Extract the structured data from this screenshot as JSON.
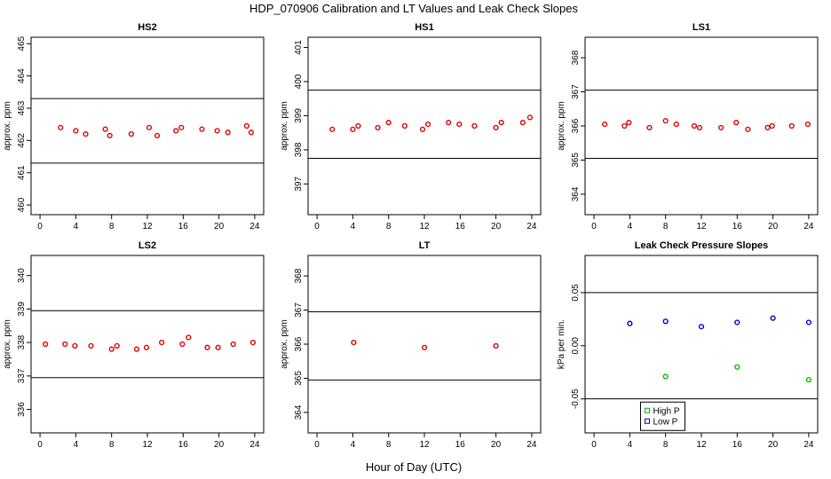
{
  "title": "HDP_070906  Calibration and LT Values and Leak Check Slopes",
  "xlabel": "Hour of Day (UTC)",
  "chart_data": [
    {
      "type": "scatter",
      "title": "HS2",
      "ylabel": "approx. ppm",
      "xlim": [
        -1,
        25
      ],
      "ylim": [
        459.7,
        465.2
      ],
      "xticks": [
        0,
        4,
        8,
        12,
        16,
        20,
        24
      ],
      "yticks": [
        460,
        461,
        462,
        463,
        464,
        465
      ],
      "hlines": [
        463.3,
        461.3
      ],
      "series": [
        {
          "color": "#dd0000",
          "x": [
            2.3,
            4.0,
            5.1,
            7.3,
            7.8,
            10.2,
            12.2,
            13.1,
            15.2,
            15.8,
            18.1,
            19.8,
            21.0,
            23.1,
            23.6
          ],
          "y": [
            462.4,
            462.3,
            462.2,
            462.35,
            462.15,
            462.2,
            462.4,
            462.15,
            462.3,
            462.4,
            462.35,
            462.3,
            462.25,
            462.45,
            462.25
          ]
        }
      ]
    },
    {
      "type": "scatter",
      "title": "HS1",
      "ylabel": "approx. ppm",
      "xlim": [
        -1,
        25
      ],
      "ylim": [
        396.1,
        401.3
      ],
      "xticks": [
        0,
        4,
        8,
        12,
        16,
        20,
        24
      ],
      "yticks": [
        397,
        398,
        399,
        400,
        401
      ],
      "hlines": [
        399.75,
        397.75
      ],
      "series": [
        {
          "color": "#dd0000",
          "x": [
            1.7,
            4.0,
            4.6,
            6.8,
            8.0,
            9.8,
            11.8,
            12.4,
            14.7,
            15.9,
            17.6,
            20.0,
            20.6,
            23.0,
            23.8
          ],
          "y": [
            398.6,
            398.6,
            398.7,
            398.65,
            398.8,
            398.7,
            398.6,
            398.75,
            398.8,
            398.75,
            398.7,
            398.65,
            398.8,
            398.8,
            398.95
          ]
        }
      ]
    },
    {
      "type": "scatter",
      "title": "LS1",
      "ylabel": "approx. ppm",
      "xlim": [
        -1,
        25
      ],
      "ylim": [
        363.4,
        368.6
      ],
      "xticks": [
        0,
        4,
        8,
        12,
        16,
        20,
        24
      ],
      "yticks": [
        364,
        365,
        366,
        367,
        368
      ],
      "hlines": [
        367.05,
        365.05
      ],
      "series": [
        {
          "color": "#dd0000",
          "x": [
            1.2,
            3.4,
            3.9,
            6.2,
            8.0,
            9.2,
            11.2,
            11.8,
            14.2,
            15.9,
            17.2,
            19.4,
            19.9,
            22.1,
            23.9
          ],
          "y": [
            366.05,
            366.0,
            366.1,
            365.95,
            366.15,
            366.05,
            366.0,
            365.95,
            365.95,
            366.1,
            365.9,
            365.95,
            366.0,
            366.0,
            366.05
          ]
        }
      ]
    },
    {
      "type": "scatter",
      "title": "LS2",
      "ylabel": "approx. ppm",
      "xlim": [
        -1,
        25
      ],
      "ylim": [
        335.3,
        340.6
      ],
      "xticks": [
        0,
        4,
        8,
        12,
        16,
        20,
        24
      ],
      "yticks": [
        336,
        337,
        338,
        339,
        340
      ],
      "hlines": [
        338.95,
        336.95
      ],
      "series": [
        {
          "color": "#dd0000",
          "x": [
            0.6,
            2.8,
            3.9,
            5.7,
            8.0,
            8.6,
            10.8,
            11.9,
            13.6,
            15.9,
            16.6,
            18.7,
            19.9,
            21.6,
            23.8
          ],
          "y": [
            337.95,
            337.95,
            337.9,
            337.9,
            337.8,
            337.9,
            337.8,
            337.85,
            338.0,
            337.95,
            338.15,
            337.85,
            337.85,
            337.95,
            338.0
          ]
        }
      ]
    },
    {
      "type": "scatter",
      "title": "LT",
      "ylabel": "approx. ppm",
      "xlim": [
        -1,
        25
      ],
      "ylim": [
        363.4,
        368.6
      ],
      "xticks": [
        0,
        4,
        8,
        12,
        16,
        20,
        24
      ],
      "yticks": [
        364,
        365,
        366,
        367,
        368
      ],
      "hlines": [
        366.95,
        364.95
      ],
      "series": [
        {
          "color": "#dd0000",
          "x": [
            4.1,
            12.0,
            20.0
          ],
          "y": [
            366.05,
            365.9,
            365.95
          ]
        }
      ]
    },
    {
      "type": "scatter",
      "title": "Leak Check Pressure Slopes",
      "ylabel": "kPa per min.",
      "xlim": [
        -1,
        25
      ],
      "ylim": [
        -0.082,
        0.085
      ],
      "xticks": [
        0,
        4,
        8,
        12,
        16,
        20,
        24
      ],
      "yticks": [
        -0.05,
        0.0,
        0.05
      ],
      "ytick_labels": [
        "-0.05",
        "0.00",
        "0.05"
      ],
      "hlines": [
        0.05,
        -0.05
      ],
      "legend": {
        "position": "bottom-center"
      },
      "series": [
        {
          "name": "High P",
          "color": "#00bb00",
          "x": [
            8.0,
            16.0,
            24.0
          ],
          "y": [
            -0.029,
            -0.02,
            -0.032
          ]
        },
        {
          "name": "Low P",
          "color": "#0000cc",
          "x": [
            4.0,
            8.0,
            12.0,
            16.0,
            20.0,
            24.0
          ],
          "y": [
            0.021,
            0.023,
            0.018,
            0.022,
            0.026,
            0.022
          ]
        }
      ]
    }
  ]
}
